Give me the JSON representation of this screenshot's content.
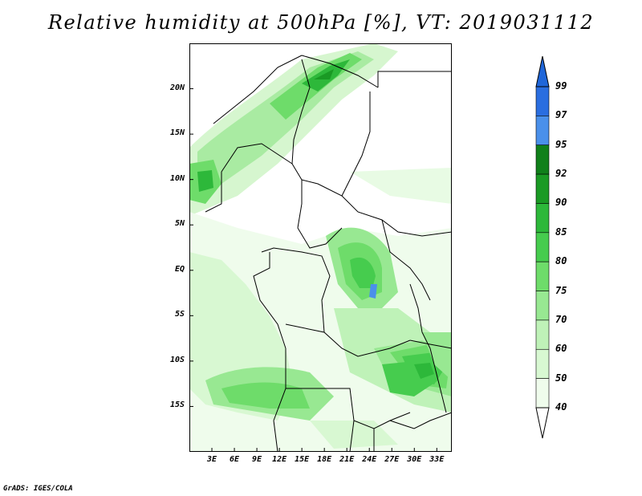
{
  "title": "Relative humidity at 500hPa [%], VT: 2019031112",
  "footer": "GrADS: IGES/COLA",
  "map": {
    "variable": "Relative humidity at 500hPa",
    "units": "%",
    "valid_time": "2019031112",
    "lon_range": [
      0,
      35
    ],
    "lat_range": [
      -20,
      25
    ],
    "lat_ticks": [
      "20N",
      "15N",
      "10N",
      "5N",
      "EQ",
      "5S",
      "10S",
      "15S"
    ],
    "lat_values": [
      20,
      15,
      10,
      5,
      0,
      -5,
      -10,
      -15
    ],
    "lon_ticks": [
      "3E",
      "6E",
      "9E",
      "12E",
      "15E",
      "18E",
      "21E",
      "24E",
      "27E",
      "30E",
      "33E"
    ],
    "lon_values": [
      3,
      6,
      9,
      12,
      15,
      18,
      21,
      24,
      27,
      30,
      33
    ]
  },
  "colorbar": {
    "levels": [
      "99",
      "97",
      "95",
      "92",
      "90",
      "85",
      "80",
      "75",
      "70",
      "60",
      "50",
      "40"
    ],
    "colors": [
      "#1e3fc8",
      "#2a6ee0",
      "#4a90ea",
      "#10801a",
      "#1a9a24",
      "#2db83a",
      "#46cc4e",
      "#6edc6a",
      "#98e892",
      "#bff2b8",
      "#d8f8d2",
      "#effcec"
    ],
    "low_color": "#ffffff",
    "high_color": "#1f66d9"
  }
}
